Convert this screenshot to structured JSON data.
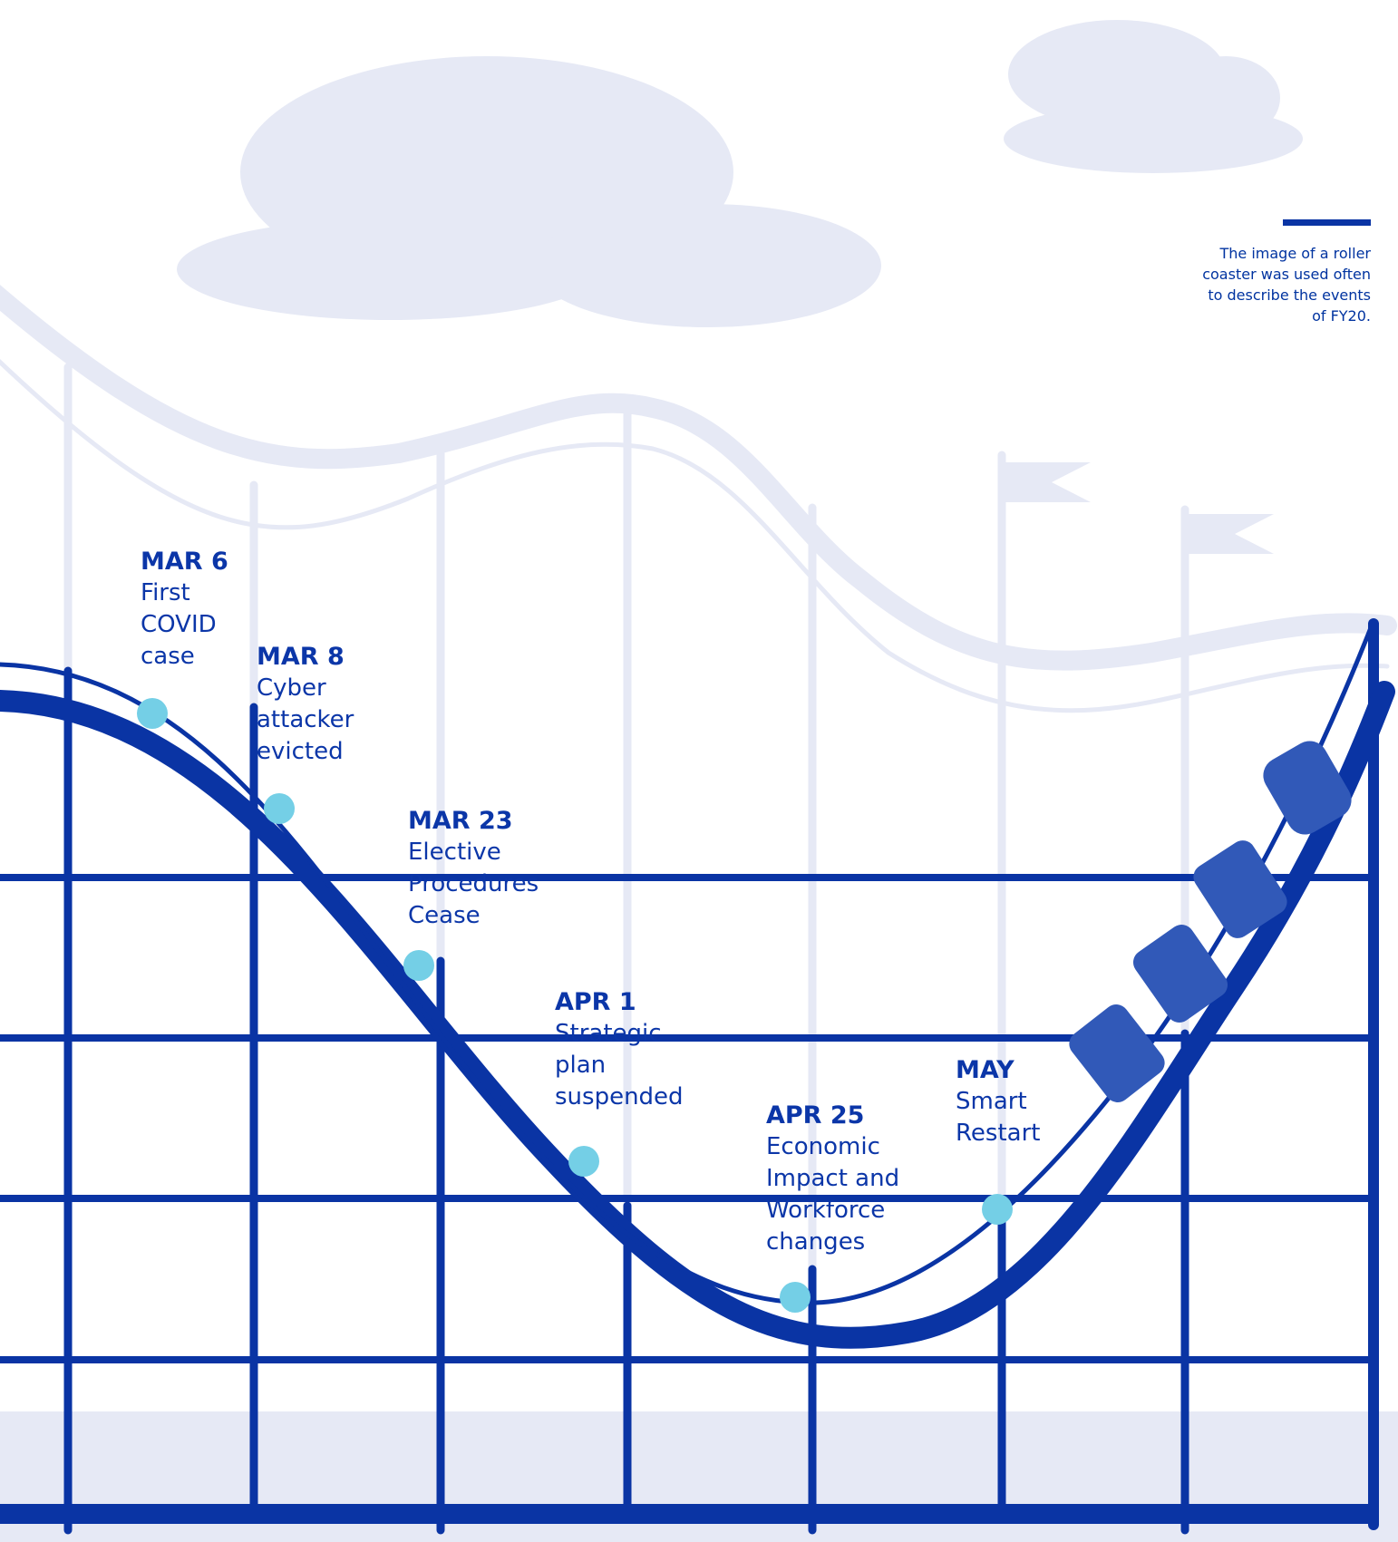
{
  "caption": "The image of a roller coaster was used often to describe the events of FY20.",
  "colors": {
    "primary": "#0a34a4",
    "pale": "#e6e9f5",
    "marker": "#74cfe6",
    "cart": "#3159b8"
  },
  "events": [
    {
      "date": "MAR 6",
      "desc": "First\nCOVID\ncase"
    },
    {
      "date": "MAR 8",
      "desc": "Cyber\nattacker\nevicted"
    },
    {
      "date": "MAR 23",
      "desc": "Elective\nProcedures\nCease"
    },
    {
      "date": "APR 1",
      "desc": "Strategic\nplan\nsuspended"
    },
    {
      "date": "APR 25",
      "desc": "Economic\nImpact and\nWorkforce\nchanges"
    },
    {
      "date": "MAY",
      "desc": "Smart\nRestart"
    }
  ]
}
